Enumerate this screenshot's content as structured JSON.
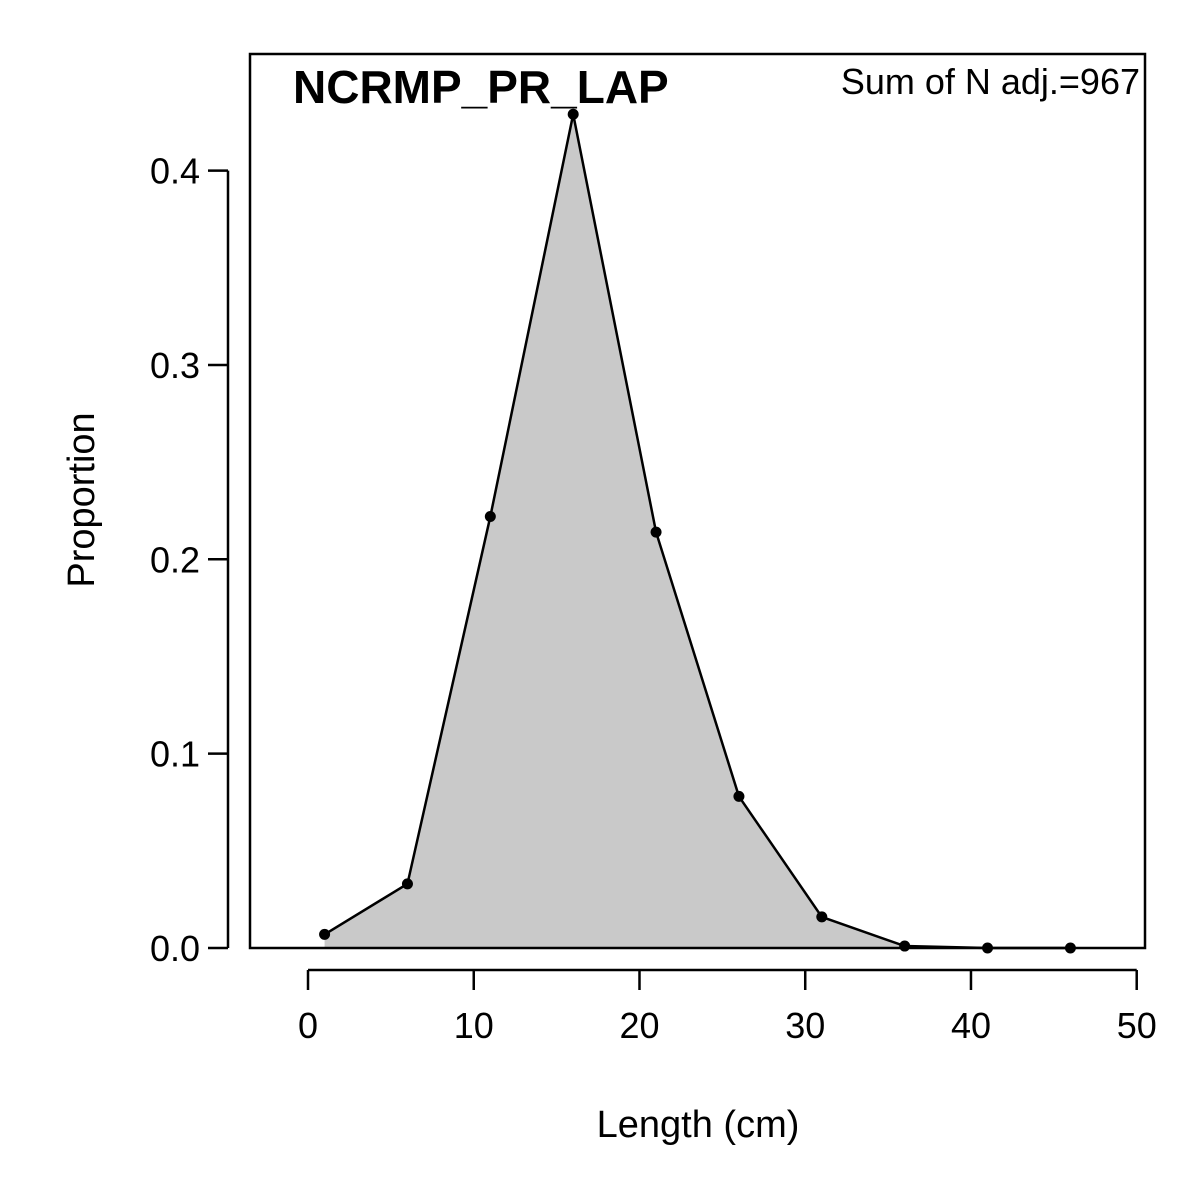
{
  "chart_data": {
    "type": "area",
    "title": "NCRMP_PR_LAP",
    "annotation": "Sum of N adj.=967",
    "xlabel": "Length (cm)",
    "ylabel": "Proportion",
    "xlim": [
      -3.5,
      50.5
    ],
    "ylim": [
      0,
      0.46
    ],
    "x_ticks": [
      0,
      10,
      20,
      30,
      40,
      50
    ],
    "y_ticks": [
      0.0,
      0.1,
      0.2,
      0.3,
      0.4
    ],
    "x_tick_labels": [
      "0",
      "10",
      "20",
      "30",
      "40",
      "50"
    ],
    "y_tick_labels": [
      "0.0",
      "0.1",
      "0.2",
      "0.3",
      "0.4"
    ],
    "grid": false,
    "legend": "none",
    "fill_color": "#c9c9c9",
    "line_color": "#000000",
    "series": [
      {
        "x": [
          1,
          6,
          11,
          16,
          21,
          26,
          31,
          36,
          41,
          46
        ],
        "y": [
          0.007,
          0.033,
          0.222,
          0.429,
          0.214,
          0.078,
          0.016,
          0.001,
          0.0,
          0.0
        ]
      }
    ]
  }
}
